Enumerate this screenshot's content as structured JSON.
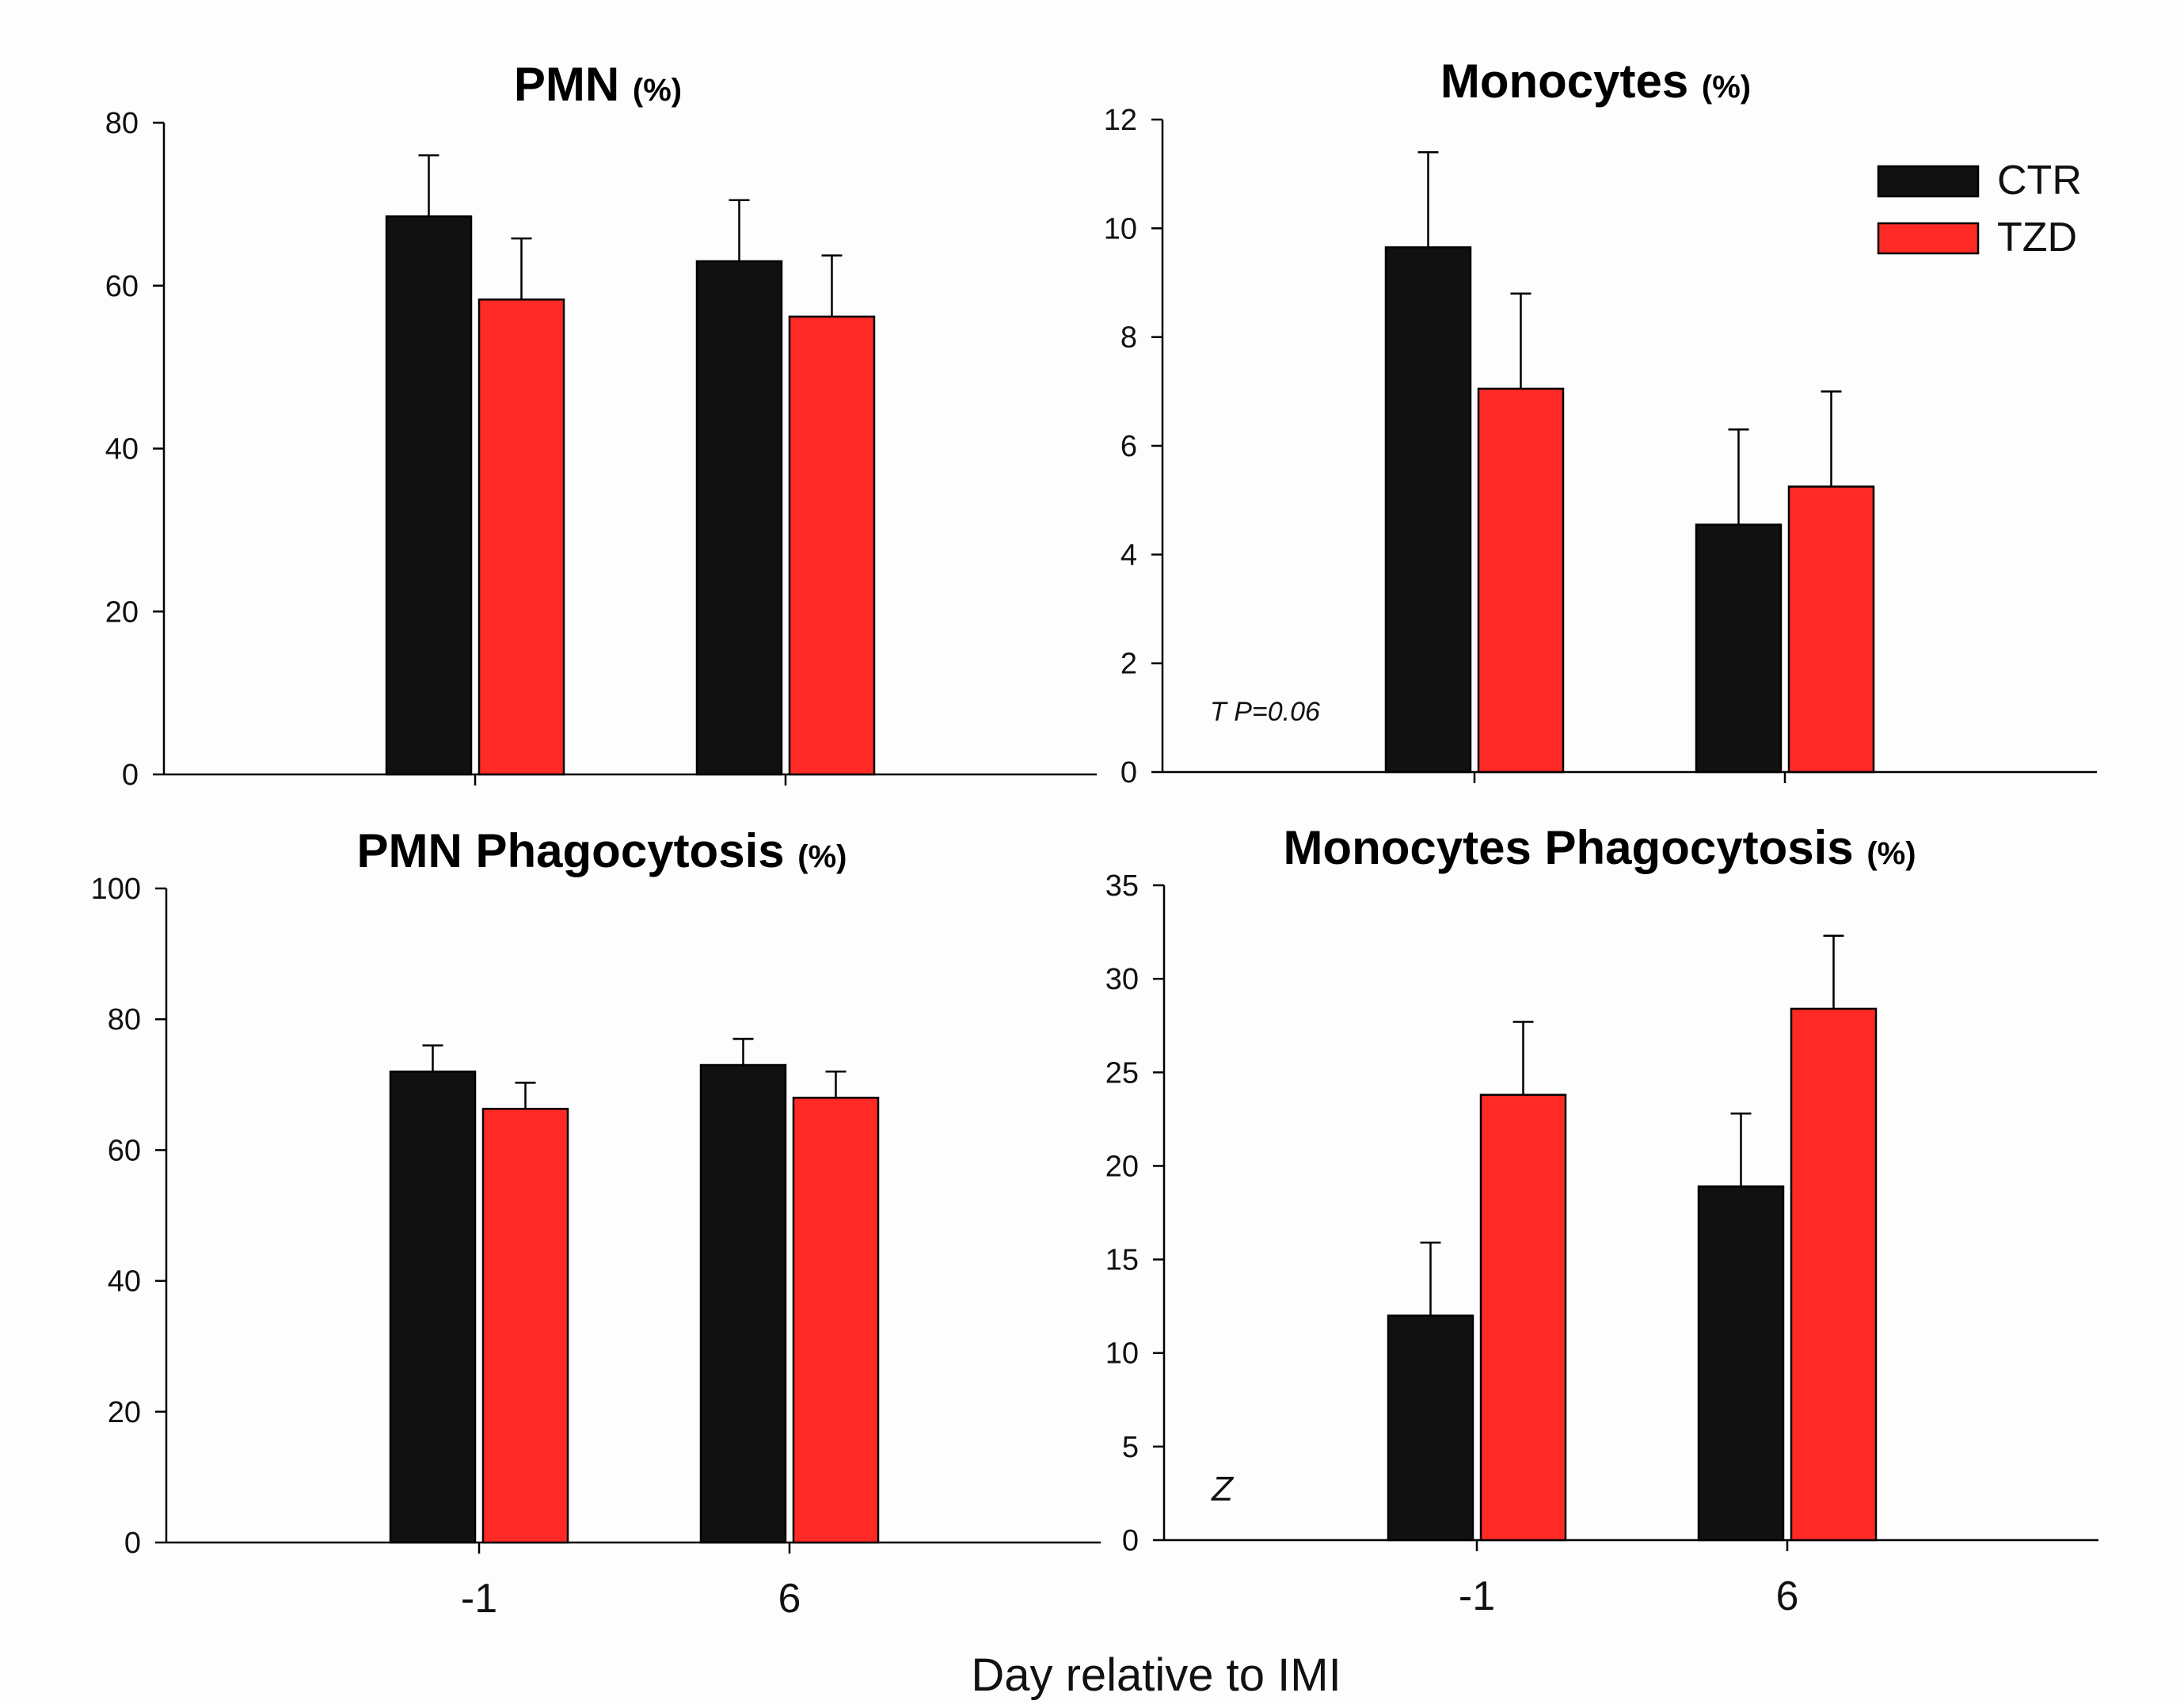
{
  "figure": {
    "xlabel": "Day relative to IMI",
    "legend": [
      {
        "name": "CTR",
        "color": "#111111"
      },
      {
        "name": "TZD",
        "color": "#ff2a26"
      }
    ]
  },
  "chart_data": [
    {
      "type": "bar",
      "title": "PMN",
      "unit": "(%)",
      "categories": [
        "-1",
        "6"
      ],
      "ylim": [
        0,
        80
      ],
      "yticks": [
        0,
        20,
        40,
        60,
        80
      ],
      "series": [
        {
          "name": "CTR",
          "values": [
            68.5,
            63
          ],
          "errors": [
            7.5,
            7.5
          ]
        },
        {
          "name": "TZD",
          "values": [
            58.3,
            56.2
          ],
          "errors": [
            7.5,
            7.5
          ]
        }
      ],
      "annotation": ""
    },
    {
      "type": "bar",
      "title": "Monocytes",
      "unit": "(%)",
      "categories": [
        "-1",
        "6"
      ],
      "ylim": [
        0,
        12
      ],
      "yticks": [
        0,
        2,
        4,
        6,
        8,
        10,
        12
      ],
      "series": [
        {
          "name": "CTR",
          "values": [
            9.65,
            4.55
          ],
          "errors": [
            1.75,
            1.75
          ]
        },
        {
          "name": "TZD",
          "values": [
            7.05,
            5.25
          ],
          "errors": [
            1.75,
            1.75
          ]
        }
      ],
      "annotation": "T P=0.06"
    },
    {
      "type": "bar",
      "title": "PMN Phagocytosis",
      "unit": "(%)",
      "categories": [
        "-1",
        "6"
      ],
      "ylim": [
        0,
        100
      ],
      "yticks": [
        0,
        20,
        40,
        60,
        80,
        100
      ],
      "series": [
        {
          "name": "CTR",
          "values": [
            72,
            73
          ],
          "errors": [
            4,
            4
          ]
        },
        {
          "name": "TZD",
          "values": [
            66.3,
            68
          ],
          "errors": [
            4,
            4
          ]
        }
      ],
      "annotation": ""
    },
    {
      "type": "bar",
      "title": "Monocytes Phagocytosis",
      "unit": "(%)",
      "categories": [
        "-1",
        "6"
      ],
      "ylim": [
        0,
        35
      ],
      "yticks": [
        0,
        5,
        10,
        15,
        20,
        25,
        30,
        35
      ],
      "series": [
        {
          "name": "CTR",
          "values": [
            12,
            18.9
          ],
          "errors": [
            3.9,
            3.9
          ]
        },
        {
          "name": "TZD",
          "values": [
            23.8,
            28.4
          ],
          "errors": [
            3.9,
            3.9
          ]
        }
      ],
      "annotation": "Z"
    }
  ]
}
